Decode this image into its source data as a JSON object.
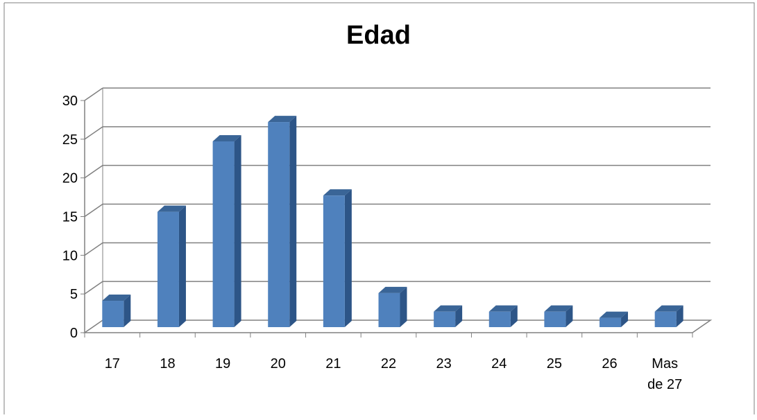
{
  "chart_data": {
    "type": "bar",
    "title": "Edad",
    "categories": [
      "17",
      "18",
      "19",
      "20",
      "21",
      "22",
      "23",
      "24",
      "25",
      "26",
      "Mas de 27"
    ],
    "values": [
      3.4,
      14.9,
      24.0,
      26.5,
      17.0,
      4.4,
      2.0,
      2.0,
      2.0,
      1.2,
      2.0
    ],
    "ylim": [
      0,
      30
    ],
    "yticks": [
      "0",
      "5",
      "10",
      "15",
      "20",
      "25",
      "30"
    ],
    "grid": true,
    "legend": "none",
    "style": "3d-column"
  },
  "colors": {
    "bar_front": "#4F81BD",
    "bar_side": "#2D5587",
    "bar_top": "#3A6597",
    "gridline": "#808080",
    "frame": "#7F7F7F"
  }
}
